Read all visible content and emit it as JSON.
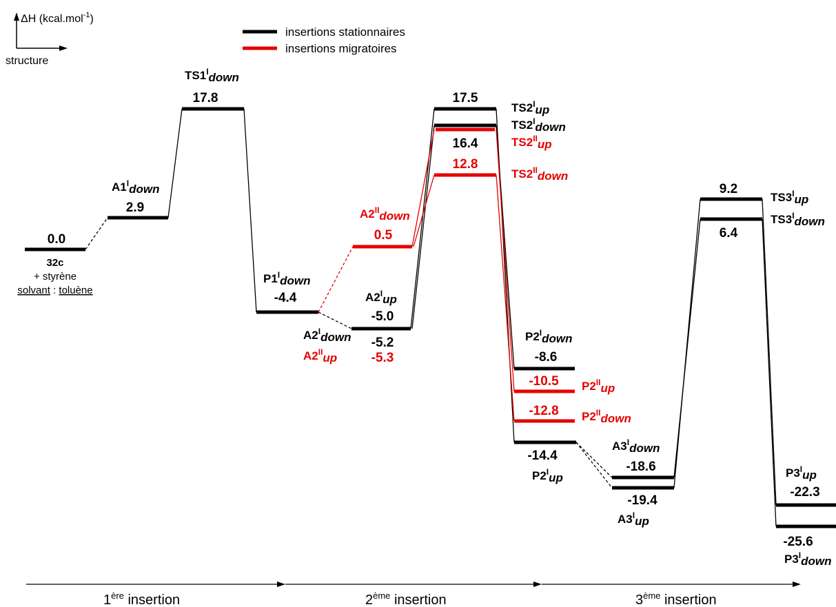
{
  "colors": {
    "stationary": "#000000",
    "migratory": "#e60000"
  },
  "axis": {
    "y_label": "ΔH (kcal.mol",
    "y_label_sup": "-1",
    "y_label_end": ")",
    "x_label": "structure"
  },
  "legend": {
    "stationary": "insertions stationnaires",
    "migratory": "insertions migratoires"
  },
  "phases": [
    {
      "num": "1",
      "sup": "ère",
      "rest": " insertion"
    },
    {
      "num": "2",
      "sup": "ème",
      "rest": " insertion"
    },
    {
      "num": "3",
      "sup": "ème",
      "rest": " insertion"
    }
  ],
  "start_note": {
    "compound": "32c",
    "reactant": "+ styrène",
    "solvent_key": "solvant",
    "sep": " : ",
    "solvent": "toluène"
  },
  "labels": {
    "A1_down": {
      "base": "A1",
      "sup": "I",
      "sub": "down"
    },
    "TS1_down": {
      "base": "TS1",
      "sup": "I",
      "sub": "down"
    },
    "P1_down": {
      "base": "P1",
      "sup": "I",
      "sub": "down"
    },
    "A2_down": {
      "base": "A2",
      "sup": "I",
      "sub": "down"
    },
    "A2II_up": {
      "base": "A2",
      "sup": "II",
      "sub": "up"
    },
    "A2_up": {
      "base": "A2",
      "sup": "I",
      "sub": "up"
    },
    "A2II_down": {
      "base": "A2",
      "sup": "II",
      "sub": "down"
    },
    "TS2_up": {
      "base": "TS2",
      "sup": "I",
      "sub": "up"
    },
    "TS2_down": {
      "base": "TS2",
      "sup": "I",
      "sub": "down"
    },
    "TS2II_up": {
      "base": "TS2",
      "sup": "II",
      "sub": "up"
    },
    "TS2II_down": {
      "base": "TS2",
      "sup": "II",
      "sub": "down"
    },
    "P2_down": {
      "base": "P2",
      "sup": "I",
      "sub": "down"
    },
    "P2II_up": {
      "base": "P2",
      "sup": "II",
      "sub": "up"
    },
    "P2II_down": {
      "base": "P2",
      "sup": "II",
      "sub": "down"
    },
    "P2_up": {
      "base": "P2",
      "sup": "I",
      "sub": "up"
    },
    "A3_down": {
      "base": "A3",
      "sup": "I",
      "sub": "down"
    },
    "A3_up": {
      "base": "A3",
      "sup": "I",
      "sub": "up"
    },
    "TS3_up": {
      "base": "TS3",
      "sup": "I",
      "sub": "up"
    },
    "TS3_down": {
      "base": "TS3",
      "sup": "I",
      "sub": "down"
    },
    "P3_up": {
      "base": "P3",
      "sup": "I",
      "sub": "up"
    },
    "P3_down": {
      "base": "P3",
      "sup": "I",
      "sub": "down"
    }
  },
  "values": {
    "start": "0.0",
    "A1_down": "2.9",
    "TS1_down": "17.8",
    "P1_down": "-4.4",
    "A2II_down": "0.5",
    "A2_up": "-5.0",
    "A2_down": "-5.2",
    "A2II_up": "-5.3",
    "TS2_up": "17.5",
    "TS2_down": "16.4",
    "TS2II_down": "12.8",
    "P2_down": "-8.6",
    "P2II_up": "-10.5",
    "P2II_down": "-12.8",
    "P2_up": "-14.4",
    "A3_down": "-18.6",
    "A3_up": "-19.4",
    "TS3_up": "9.2",
    "TS3_down": "6.4",
    "P3_up": "-22.3",
    "P3_down": "-25.6"
  }
}
